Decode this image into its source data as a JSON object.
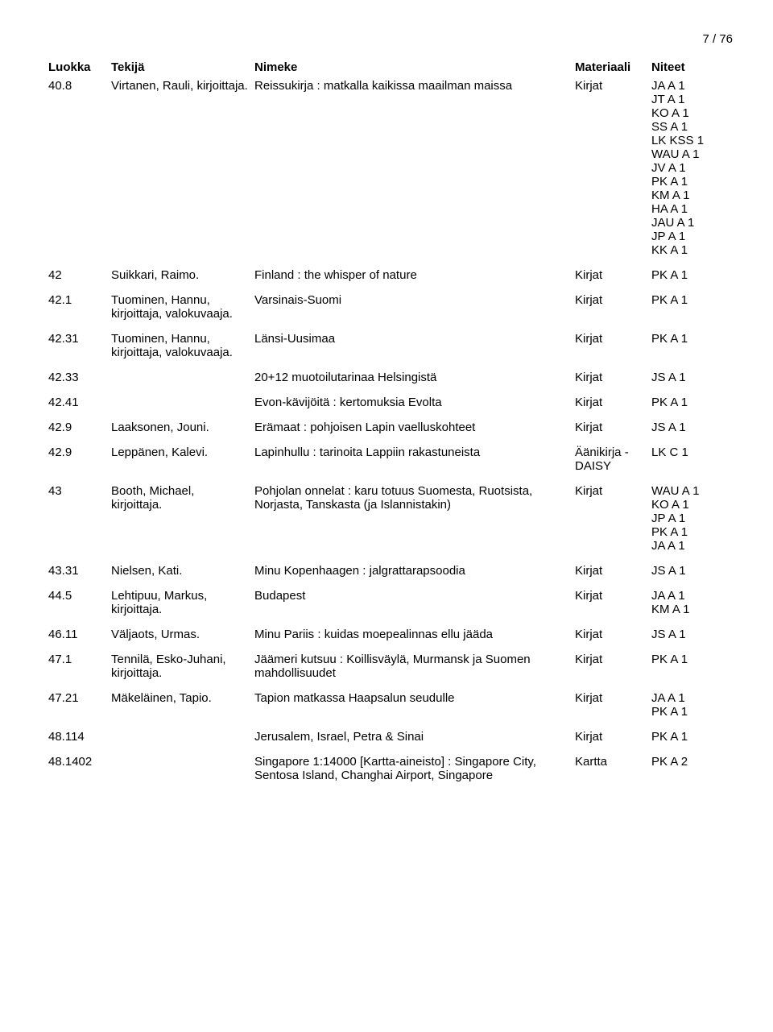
{
  "page_number": "7 / 76",
  "headers": {
    "luokka": "Luokka",
    "tekija": "Tekijä",
    "nimeke": "Nimeke",
    "materiaali": "Materiaali",
    "niteet": "Niteet"
  },
  "rows": [
    {
      "luokka": "40.8",
      "tekija": "Virtanen, Rauli, kirjoittaja.",
      "nimeke": "Reissukirja : matkalla kaikissa maailman maissa",
      "materiaali": "Kirjat",
      "niteet": [
        "JA A 1",
        "JT A 1",
        "KO A 1",
        "SS A 1",
        "LK KSS 1",
        "WAU A 1",
        "JV A 1",
        "PK A 1",
        "KM A 1",
        "HA A 1",
        "JAU A 1",
        "JP A 1",
        "KK A 1"
      ]
    },
    {
      "luokka": "42",
      "tekija": "Suikkari, Raimo.",
      "nimeke": "Finland : the whisper of nature",
      "materiaali": "Kirjat",
      "niteet": [
        "PK A 1"
      ]
    },
    {
      "luokka": "42.1",
      "tekija": "Tuominen, Hannu, kirjoittaja, valokuvaaja.",
      "nimeke": "Varsinais-Suomi",
      "materiaali": "Kirjat",
      "niteet": [
        "PK A 1"
      ]
    },
    {
      "luokka": "42.31",
      "tekija": "Tuominen, Hannu, kirjoittaja, valokuvaaja.",
      "nimeke": "Länsi-Uusimaa",
      "materiaali": "Kirjat",
      "niteet": [
        "PK A 1"
      ]
    },
    {
      "luokka": "42.33",
      "tekija": "",
      "nimeke": "20+12 muotoilutarinaa Helsingistä",
      "materiaali": "Kirjat",
      "niteet": [
        "JS A 1"
      ]
    },
    {
      "luokka": "42.41",
      "tekija": "",
      "nimeke": "Evon-kävijöitä : kertomuksia Evolta",
      "materiaali": "Kirjat",
      "niteet": [
        "PK A 1"
      ]
    },
    {
      "luokka": "42.9",
      "tekija": "Laaksonen, Jouni.",
      "nimeke": "Erämaat : pohjoisen Lapin vaelluskohteet",
      "materiaali": "Kirjat",
      "niteet": [
        "JS A 1"
      ]
    },
    {
      "luokka": "42.9",
      "tekija": "Leppänen, Kalevi.",
      "nimeke": "Lapinhullu : tarinoita Lappiin rakastuneista",
      "materiaali": "Äänikirja - DAISY",
      "niteet": [
        "LK C 1"
      ]
    },
    {
      "luokka": "43",
      "tekija": "Booth, Michael, kirjoittaja.",
      "nimeke": "Pohjolan onnelat : karu totuus Suomesta, Ruotsista, Norjasta, Tanskasta (ja Islannistakin)",
      "materiaali": "Kirjat",
      "niteet": [
        "WAU A 1",
        "KO A 1",
        "JP A 1",
        "PK A 1",
        "JA A 1"
      ]
    },
    {
      "luokka": "43.31",
      "tekija": "Nielsen, Kati.",
      "nimeke": "Minu Kopenhaagen : jalgrattarapsoodia",
      "materiaali": "Kirjat",
      "niteet": [
        "JS A 1"
      ]
    },
    {
      "luokka": "44.5",
      "tekija": "Lehtipuu, Markus, kirjoittaja.",
      "nimeke": "Budapest",
      "materiaali": "Kirjat",
      "niteet": [
        "JA A 1",
        "KM A 1"
      ]
    },
    {
      "luokka": "46.11",
      "tekija": "Väljaots, Urmas.",
      "nimeke": "Minu Pariis : kuidas moepealinnas ellu jääda",
      "materiaali": "Kirjat",
      "niteet": [
        "JS A 1"
      ]
    },
    {
      "luokka": "47.1",
      "tekija": "Tennilä, Esko-Juhani, kirjoittaja.",
      "nimeke": "Jäämeri kutsuu : Koillisväylä, Murmansk ja Suomen mahdollisuudet",
      "materiaali": "Kirjat",
      "niteet": [
        "PK A 1"
      ]
    },
    {
      "luokka": "47.21",
      "tekija": "Mäkeläinen, Tapio.",
      "nimeke": "Tapion matkassa Haapsalun seudulle",
      "materiaali": "Kirjat",
      "niteet": [
        "JA A 1",
        "PK A 1"
      ]
    },
    {
      "luokka": "48.114",
      "tekija": "",
      "nimeke": "Jerusalem, Israel, Petra & Sinai",
      "materiaali": "Kirjat",
      "niteet": [
        "PK A 1"
      ]
    },
    {
      "luokka": "48.1402",
      "tekija": "",
      "nimeke": "Singapore 1:14000 [Kartta-aineisto] : Singapore City, Sentosa Island, Changhai Airport, Singapore",
      "materiaali": "Kartta",
      "niteet": [
        "PK A 2"
      ]
    }
  ]
}
